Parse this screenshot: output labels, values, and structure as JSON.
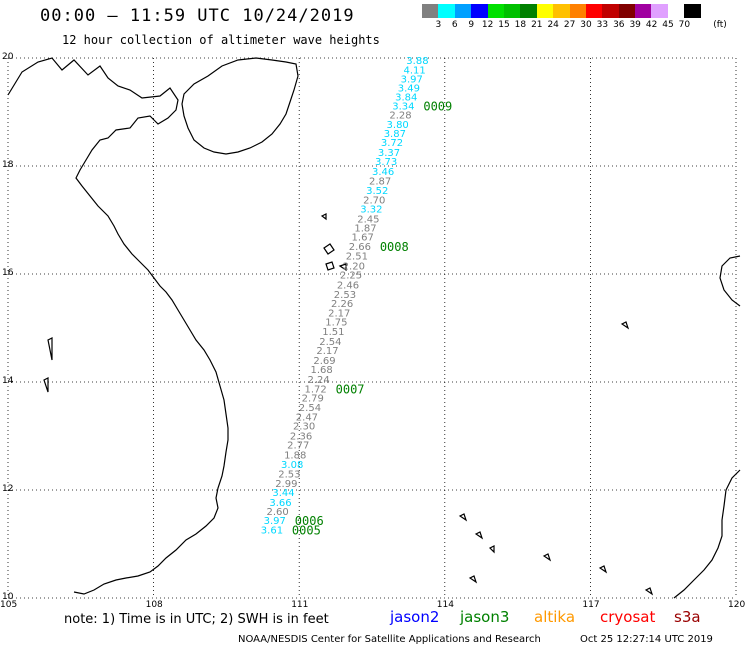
{
  "header": {
    "title": "00:00 – 11:59 UTC 10/24/2019",
    "subtitle": "12 hour collection of altimeter wave heights"
  },
  "legend": {
    "unit": "(ft)",
    "colors": [
      "#808080",
      "#00ffff",
      "#00a0ff",
      "#0000ff",
      "#00e000",
      "#00c000",
      "#008000",
      "#ffff00",
      "#ffc000",
      "#ff8000",
      "#ff0000",
      "#c00000",
      "#800000",
      "#a000a0",
      "#e0a0ff",
      "#ffffff",
      "#000000"
    ],
    "labels": [
      "3",
      "6",
      "9",
      "12",
      "15",
      "18",
      "21",
      "24",
      "27",
      "30",
      "33",
      "36",
      "39",
      "42",
      "45",
      "70"
    ]
  },
  "map": {
    "lat_labels": [
      "20",
      "18",
      "16",
      "14",
      "12",
      "10"
    ],
    "lon_labels": [
      "105",
      "108",
      "111",
      "114",
      "117",
      "120"
    ],
    "colors": {
      "grey": "#808080",
      "cyan": "#00d8ff",
      "pass": "#008000"
    },
    "track_points": [
      {
        "value": "3.88",
        "lat": 19.96,
        "color": "cyan"
      },
      {
        "value": "4.11",
        "lat": 19.79,
        "color": "cyan"
      },
      {
        "value": "3.97",
        "lat": 19.62,
        "color": "cyan"
      },
      {
        "value": "3.49",
        "lat": 19.45,
        "color": "cyan"
      },
      {
        "value": "3.84",
        "lat": 19.29,
        "color": "cyan"
      },
      {
        "value": "3.34",
        "lat": 19.12,
        "color": "cyan"
      },
      {
        "value": "2.28",
        "lat": 18.95,
        "color": "grey"
      },
      {
        "value": "3.80",
        "lat": 18.78,
        "color": "cyan"
      },
      {
        "value": "3.87",
        "lat": 18.61,
        "color": "cyan"
      },
      {
        "value": "3.72",
        "lat": 18.44,
        "color": "cyan"
      },
      {
        "value": "3.37",
        "lat": 18.26,
        "color": "cyan"
      },
      {
        "value": "3.73",
        "lat": 18.09,
        "color": "cyan"
      },
      {
        "value": "3.46",
        "lat": 17.91,
        "color": "cyan"
      },
      {
        "value": "2.87",
        "lat": 17.73,
        "color": "grey"
      },
      {
        "value": "3.52",
        "lat": 17.56,
        "color": "cyan"
      },
      {
        "value": "2.70",
        "lat": 17.38,
        "color": "grey"
      },
      {
        "value": "3.32",
        "lat": 17.21,
        "color": "cyan"
      },
      {
        "value": "2.45",
        "lat": 17.03,
        "color": "grey"
      },
      {
        "value": "1.87",
        "lat": 16.86,
        "color": "grey"
      },
      {
        "value": "1.67",
        "lat": 16.69,
        "color": "grey"
      },
      {
        "value": "2.66",
        "lat": 16.52,
        "color": "grey"
      },
      {
        "value": "2.51",
        "lat": 16.34,
        "color": "grey"
      },
      {
        "value": "2.20",
        "lat": 16.16,
        "color": "grey"
      },
      {
        "value": "2.25",
        "lat": 15.99,
        "color": "grey"
      },
      {
        "value": "2.46",
        "lat": 15.81,
        "color": "grey"
      },
      {
        "value": "2.53",
        "lat": 15.63,
        "color": "grey"
      },
      {
        "value": "2.26",
        "lat": 15.46,
        "color": "grey"
      },
      {
        "value": "2.17",
        "lat": 15.29,
        "color": "grey"
      },
      {
        "value": "1.75",
        "lat": 15.12,
        "color": "grey"
      },
      {
        "value": "1.51",
        "lat": 14.94,
        "color": "grey"
      },
      {
        "value": "2.54",
        "lat": 14.76,
        "color": "grey"
      },
      {
        "value": "2.17",
        "lat": 14.59,
        "color": "grey"
      },
      {
        "value": "2.69",
        "lat": 14.41,
        "color": "grey"
      },
      {
        "value": "1.68",
        "lat": 14.24,
        "color": "grey"
      },
      {
        "value": "2.24",
        "lat": 14.06,
        "color": "grey"
      },
      {
        "value": "1.72",
        "lat": 13.88,
        "color": "grey"
      },
      {
        "value": "2.79",
        "lat": 13.71,
        "color": "grey"
      },
      {
        "value": "2.54",
        "lat": 13.54,
        "color": "grey"
      },
      {
        "value": "2.47",
        "lat": 13.36,
        "color": "grey"
      },
      {
        "value": "2.30",
        "lat": 13.19,
        "color": "grey"
      },
      {
        "value": "2.36",
        "lat": 13.01,
        "color": "grey"
      },
      {
        "value": "2.77",
        "lat": 12.84,
        "color": "grey"
      },
      {
        "value": "1.88",
        "lat": 12.66,
        "color": "grey"
      },
      {
        "value": "3.08",
        "lat": 12.48,
        "color": "cyan"
      },
      {
        "value": "2.53",
        "lat": 12.31,
        "color": "grey"
      },
      {
        "value": "2.99",
        "lat": 12.13,
        "color": "grey"
      },
      {
        "value": "3.44",
        "lat": 11.96,
        "color": "cyan"
      },
      {
        "value": "3.66",
        "lat": 11.78,
        "color": "cyan"
      },
      {
        "value": "2.60",
        "lat": 11.61,
        "color": "grey"
      },
      {
        "value": "3.97",
        "lat": 11.44,
        "color": "cyan"
      },
      {
        "value": "3.61",
        "lat": 11.27,
        "color": "cyan"
      }
    ],
    "pass_labels": [
      {
        "id": "0009",
        "lat": 19.12
      },
      {
        "id": "0008",
        "lat": 16.52
      },
      {
        "id": "0007",
        "lat": 13.88
      },
      {
        "id": "0006",
        "lat": 11.44
      },
      {
        "id": "0005",
        "lat": 11.27
      }
    ]
  },
  "footer": {
    "note": "note: 1) Time is in UTC; 2) SWH is in feet",
    "satellites": [
      {
        "name": "jason2",
        "color": "#0000ff"
      },
      {
        "name": "jason3",
        "color": "#008000"
      },
      {
        "name": "altika",
        "color": "#ff9900"
      },
      {
        "name": "cryosat",
        "color": "#ff0000"
      },
      {
        "name": "s3a",
        "color": "#990000"
      }
    ],
    "credit": "NOAA/NESDIS Center for Satellite Applications and Research",
    "timestamp": "Oct 25 12:27:14 UTC 2019"
  }
}
